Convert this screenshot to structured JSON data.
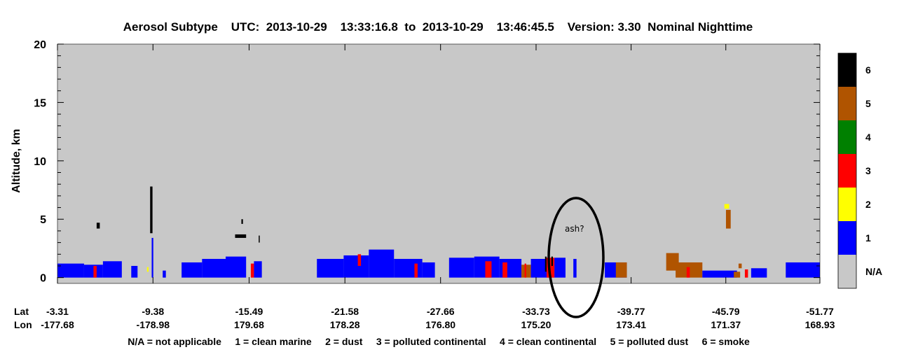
{
  "chart_data": {
    "type": "heatmap",
    "title": "Aerosol Subtype    UTC:  2013-10-29    13:33:16.8  to  2013-10-29    13:46:45.5    Version: 3.30  Nominal Nighttime",
    "ylabel": "Altitude, km",
    "ylim": [
      -0.5,
      20
    ],
    "yticks": [
      0,
      5,
      10,
      15,
      20
    ],
    "xaxis": {
      "row_labels": [
        "Lat",
        "Lon"
      ],
      "lat": [
        "-3.31",
        "-9.38",
        "-15.49",
        "-21.58",
        "-27.66",
        "-33.73",
        "-39.77",
        "-45.79",
        "-51.77"
      ],
      "lon": [
        "-177.68",
        "-178.98",
        "179.68",
        "178.28",
        "176.80",
        "175.20",
        "173.41",
        "171.37",
        "168.93"
      ]
    },
    "colorbar": [
      {
        "code": "N/A",
        "color": "#c8c8c8"
      },
      {
        "code": "1",
        "color": "#0000ff"
      },
      {
        "code": "2",
        "color": "#ffff00"
      },
      {
        "code": "3",
        "color": "#ff0000"
      },
      {
        "code": "4",
        "color": "#008000"
      },
      {
        "code": "5",
        "color": "#b05400"
      },
      {
        "code": "6",
        "color": "#000000"
      }
    ],
    "legend_text": "N/A = not applicable     1 = clean marine     2 = dust     3 = polluted continental     4 = clean continental     5 = polluted dust     6 = smoke",
    "annotation": {
      "text": "ash?",
      "lat": -36.0,
      "alt_km": 1.5
    },
    "features": [
      {
        "subtype": 1,
        "lat_start": -3.31,
        "lat_end": -5.0,
        "alt_bottom": 0,
        "alt_top": 1.2
      },
      {
        "subtype": 1,
        "lat_start": -5.0,
        "lat_end": -6.2,
        "alt_bottom": 0,
        "alt_top": 1.1
      },
      {
        "subtype": 3,
        "lat_start": -5.6,
        "lat_end": -5.8,
        "alt_bottom": 0,
        "alt_top": 1.0
      },
      {
        "subtype": 1,
        "lat_start": -6.2,
        "lat_end": -7.4,
        "alt_bottom": 0,
        "alt_top": 1.4
      },
      {
        "subtype": 1,
        "lat_start": -8.0,
        "lat_end": -8.4,
        "alt_bottom": 0,
        "alt_top": 1.0
      },
      {
        "subtype": 6,
        "lat_start": -5.8,
        "lat_end": -6.0,
        "alt_bottom": 4.2,
        "alt_top": 4.7
      },
      {
        "subtype": 6,
        "lat_start": -9.2,
        "lat_end": -9.35,
        "alt_bottom": 3.8,
        "alt_top": 7.8
      },
      {
        "subtype": 1,
        "lat_start": -9.3,
        "lat_end": -9.4,
        "alt_bottom": 0,
        "alt_top": 3.4
      },
      {
        "subtype": 2,
        "lat_start": -9.0,
        "lat_end": -9.1,
        "alt_bottom": 0.5,
        "alt_top": 0.9
      },
      {
        "subtype": 1,
        "lat_start": -10.0,
        "lat_end": -10.2,
        "alt_bottom": 0,
        "alt_top": 0.6
      },
      {
        "subtype": 1,
        "lat_start": -11.2,
        "lat_end": -12.5,
        "alt_bottom": 0,
        "alt_top": 1.3
      },
      {
        "subtype": 1,
        "lat_start": -12.5,
        "lat_end": -14.0,
        "alt_bottom": 0,
        "alt_top": 1.6
      },
      {
        "subtype": 1,
        "lat_start": -14.0,
        "lat_end": -15.3,
        "alt_bottom": 0,
        "alt_top": 1.8
      },
      {
        "subtype": 3,
        "lat_start": -15.6,
        "lat_end": -15.8,
        "alt_bottom": 0,
        "alt_top": 1.2
      },
      {
        "subtype": 1,
        "lat_start": -15.8,
        "lat_end": -16.3,
        "alt_bottom": 0,
        "alt_top": 1.4
      },
      {
        "subtype": 6,
        "lat_start": -14.6,
        "lat_end": -15.3,
        "alt_bottom": 3.4,
        "alt_top": 3.7
      },
      {
        "subtype": 6,
        "lat_start": -15.0,
        "lat_end": -15.1,
        "alt_bottom": 4.6,
        "alt_top": 5.0
      },
      {
        "subtype": 6,
        "lat_start": -16.1,
        "lat_end": -16.15,
        "alt_bottom": 3.0,
        "alt_top": 3.6
      },
      {
        "subtype": 1,
        "lat_start": -19.8,
        "lat_end": -21.5,
        "alt_bottom": 0,
        "alt_top": 1.6
      },
      {
        "subtype": 1,
        "lat_start": -21.5,
        "lat_end": -23.1,
        "alt_bottom": 0,
        "alt_top": 1.9
      },
      {
        "subtype": 3,
        "lat_start": -22.4,
        "lat_end": -22.6,
        "alt_bottom": 1.0,
        "alt_top": 2.0
      },
      {
        "subtype": 1,
        "lat_start": -23.1,
        "lat_end": -24.7,
        "alt_bottom": 0,
        "alt_top": 2.4
      },
      {
        "subtype": 1,
        "lat_start": -24.7,
        "lat_end": -26.5,
        "alt_bottom": 0,
        "alt_top": 1.6
      },
      {
        "subtype": 3,
        "lat_start": -26.0,
        "lat_end": -26.2,
        "alt_bottom": 0,
        "alt_top": 1.2
      },
      {
        "subtype": 1,
        "lat_start": -26.5,
        "lat_end": -27.3,
        "alt_bottom": 0,
        "alt_top": 1.3
      },
      {
        "subtype": 1,
        "lat_start": -28.2,
        "lat_end": -29.8,
        "alt_bottom": 0,
        "alt_top": 1.7
      },
      {
        "subtype": 1,
        "lat_start": -29.8,
        "lat_end": -31.4,
        "alt_bottom": 0,
        "alt_top": 1.8
      },
      {
        "subtype": 3,
        "lat_start": -30.5,
        "lat_end": -30.9,
        "alt_bottom": 0,
        "alt_top": 1.4
      },
      {
        "subtype": 1,
        "lat_start": -31.4,
        "lat_end": -32.8,
        "alt_bottom": 0,
        "alt_top": 1.6
      },
      {
        "subtype": 3,
        "lat_start": -31.6,
        "lat_end": -31.9,
        "alt_bottom": 0,
        "alt_top": 1.3
      },
      {
        "subtype": 5,
        "lat_start": -32.8,
        "lat_end": -33.4,
        "alt_bottom": 0,
        "alt_top": 1.1
      },
      {
        "subtype": 3,
        "lat_start": -33.0,
        "lat_end": -33.1,
        "alt_bottom": 0,
        "alt_top": 1.2
      },
      {
        "subtype": 1,
        "lat_start": -33.4,
        "lat_end": -34.9,
        "alt_bottom": 0,
        "alt_top": 1.6
      },
      {
        "subtype": 6,
        "lat_start": -34.3,
        "lat_end": -34.4,
        "alt_bottom": 0.5,
        "alt_top": 1.8
      },
      {
        "subtype": 3,
        "lat_start": -34.4,
        "lat_end": -34.9,
        "alt_bottom": 0,
        "alt_top": 1.7
      },
      {
        "subtype": 6,
        "lat_start": -34.7,
        "lat_end": -34.8,
        "alt_bottom": 1.0,
        "alt_top": 1.8
      },
      {
        "subtype": 1,
        "lat_start": -34.9,
        "lat_end": -35.6,
        "alt_bottom": 0,
        "alt_top": 1.7
      },
      {
        "subtype": 1,
        "lat_start": -36.1,
        "lat_end": -36.3,
        "alt_bottom": 0,
        "alt_top": 1.6
      },
      {
        "subtype": 1,
        "lat_start": -38.1,
        "lat_end": -39.5,
        "alt_bottom": 0,
        "alt_top": 1.3
      },
      {
        "subtype": 5,
        "lat_start": -38.8,
        "lat_end": -39.5,
        "alt_bottom": 0,
        "alt_top": 1.3
      },
      {
        "subtype": 5,
        "lat_start": -42.0,
        "lat_end": -42.8,
        "alt_bottom": 0.6,
        "alt_top": 2.1
      },
      {
        "subtype": 5,
        "lat_start": -42.6,
        "lat_end": -44.3,
        "alt_bottom": 0,
        "alt_top": 1.3
      },
      {
        "subtype": 3,
        "lat_start": -43.3,
        "lat_end": -43.5,
        "alt_bottom": 0,
        "alt_top": 0.9
      },
      {
        "subtype": 1,
        "lat_start": -44.3,
        "lat_end": -46.5,
        "alt_bottom": 0,
        "alt_top": 0.6
      },
      {
        "subtype": 5,
        "lat_start": -46.3,
        "lat_end": -46.7,
        "alt_bottom": 0,
        "alt_top": 0.5
      },
      {
        "subtype": 5,
        "lat_start": -46.6,
        "lat_end": -46.8,
        "alt_bottom": 0.8,
        "alt_top": 1.2
      },
      {
        "subtype": 3,
        "lat_start": -47.0,
        "lat_end": -47.2,
        "alt_bottom": 0,
        "alt_top": 0.7
      },
      {
        "subtype": 1,
        "lat_start": -47.4,
        "lat_end": -48.4,
        "alt_bottom": 0,
        "alt_top": 0.8
      },
      {
        "subtype": 1,
        "lat_start": -49.6,
        "lat_end": -51.77,
        "alt_bottom": 0,
        "alt_top": 1.3
      },
      {
        "subtype": 2,
        "lat_start": -45.7,
        "lat_end": -46.0,
        "alt_bottom": 5.9,
        "alt_top": 6.3
      },
      {
        "subtype": 5,
        "lat_start": -45.8,
        "lat_end": -46.1,
        "alt_bottom": 4.2,
        "alt_top": 5.8
      }
    ]
  }
}
